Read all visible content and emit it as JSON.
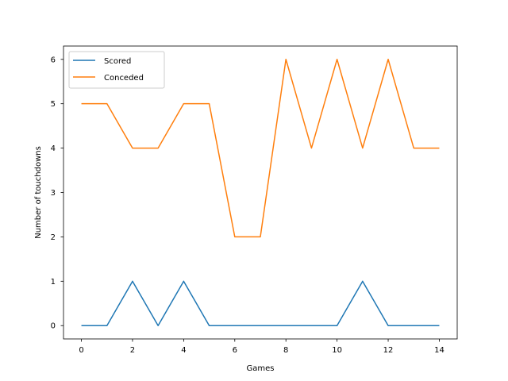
{
  "chart_data": {
    "type": "line",
    "title": "",
    "xlabel": "Games",
    "ylabel": "Number of touchdowns",
    "x": [
      0,
      1,
      2,
      3,
      4,
      5,
      6,
      7,
      8,
      9,
      10,
      11,
      12,
      13,
      14
    ],
    "series": [
      {
        "name": "Scored",
        "color": "#1f77b4",
        "values": [
          0,
          0,
          1,
          0,
          1,
          0,
          0,
          0,
          0,
          0,
          0,
          1,
          0,
          0,
          0
        ]
      },
      {
        "name": "Conceded",
        "color": "#ff7f0e",
        "values": [
          5,
          5,
          4,
          4,
          5,
          5,
          2,
          2,
          6,
          4,
          6,
          4,
          6,
          4,
          4
        ]
      }
    ],
    "xlim": [
      -0.7,
      14.7
    ],
    "ylim": [
      -0.3,
      6.3
    ],
    "xticks": [
      0,
      2,
      4,
      6,
      8,
      10,
      12,
      14
    ],
    "yticks": [
      0,
      1,
      2,
      3,
      4,
      5,
      6
    ],
    "grid": false,
    "legend_position": "top-left"
  }
}
